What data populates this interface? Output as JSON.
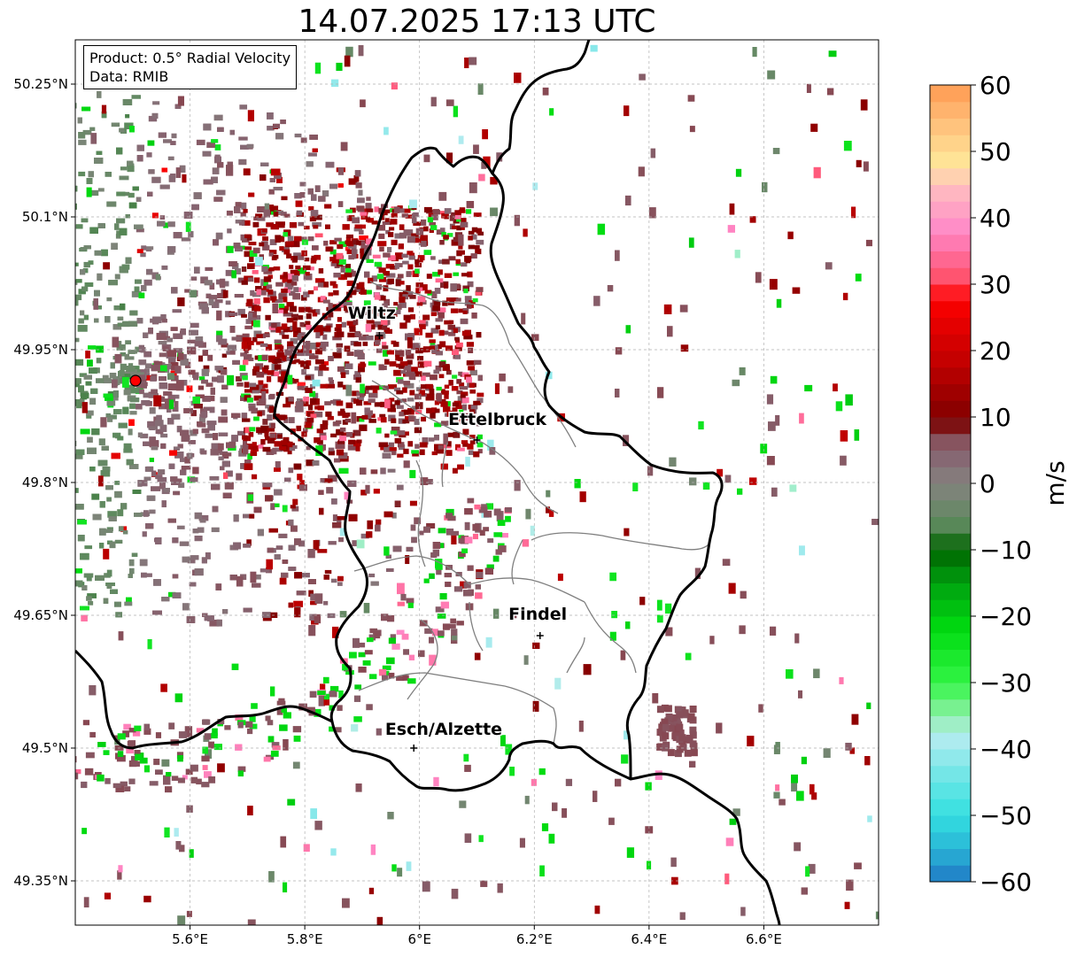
{
  "title": "14.07.2025 17:13 UTC",
  "info": {
    "product": "Product: 0.5° Radial Velocity",
    "source": "Data: RMIB"
  },
  "map": {
    "lon_range": [
      5.4,
      6.8
    ],
    "lat_range": [
      49.3,
      50.3
    ],
    "lon_ticks": [
      {
        "value": 5.6,
        "label": "5.6°E"
      },
      {
        "value": 5.8,
        "label": "5.8°E"
      },
      {
        "value": 6.0,
        "label": "6°E"
      },
      {
        "value": 6.2,
        "label": "6.2°E"
      },
      {
        "value": 6.4,
        "label": "6.4°E"
      },
      {
        "value": 6.6,
        "label": "6.6°E"
      }
    ],
    "lat_ticks": [
      {
        "value": 50.25,
        "label": "50.25°N"
      },
      {
        "value": 50.1,
        "label": "50.1°N"
      },
      {
        "value": 49.95,
        "label": "49.95°N"
      },
      {
        "value": 49.8,
        "label": "49.8°N"
      },
      {
        "value": 49.65,
        "label": "49.65°N"
      },
      {
        "value": 49.5,
        "label": "49.5°N"
      },
      {
        "value": 49.35,
        "label": "49.35°N"
      }
    ],
    "radar_site": {
      "lon": 5.505,
      "lat": 49.915
    },
    "cities": [
      {
        "name": "Wiltz",
        "lon": 5.93,
        "lat": 49.966,
        "label_lon": 5.875,
        "label_lat": 49.985
      },
      {
        "name": "Ettelbruck",
        "lon": 6.1,
        "lat": 49.848,
        "label_lon": 6.05,
        "label_lat": 49.865
      },
      {
        "name": "Findel",
        "lon": 6.21,
        "lat": 49.627,
        "label_lon": 6.155,
        "label_lat": 49.645
      },
      {
        "name": "Esch/Alzette",
        "lon": 5.99,
        "lat": 49.5,
        "label_lon": 5.94,
        "label_lat": 49.515
      }
    ]
  },
  "colorbar": {
    "label": "m/s",
    "min": -60,
    "max": 60,
    "ticks": [
      {
        "value": 60,
        "label": "60"
      },
      {
        "value": 50,
        "label": "50"
      },
      {
        "value": 40,
        "label": "40"
      },
      {
        "value": 30,
        "label": "30"
      },
      {
        "value": 20,
        "label": "20"
      },
      {
        "value": 10,
        "label": "10"
      },
      {
        "value": 0,
        "label": "0"
      },
      {
        "value": -10,
        "label": "−10"
      },
      {
        "value": -20,
        "label": "−20"
      },
      {
        "value": -30,
        "label": "−30"
      },
      {
        "value": -40,
        "label": "−40"
      },
      {
        "value": -50,
        "label": "−50"
      },
      {
        "value": -60,
        "label": "−60"
      }
    ],
    "stops": [
      {
        "value": -60,
        "color": "#1f77c4"
      },
      {
        "value": -55,
        "color": "#29b6d6"
      },
      {
        "value": -50,
        "color": "#33dfe0"
      },
      {
        "value": -45,
        "color": "#66e5e5"
      },
      {
        "value": -38,
        "color": "#b5ecf0"
      },
      {
        "value": -35,
        "color": "#8ff0a8"
      },
      {
        "value": -30,
        "color": "#33f546"
      },
      {
        "value": -22,
        "color": "#00dc10"
      },
      {
        "value": -15,
        "color": "#00a010"
      },
      {
        "value": -10,
        "color": "#006400"
      },
      {
        "value": -6,
        "color": "#5e8a5e"
      },
      {
        "value": 0,
        "color": "#84837f"
      },
      {
        "value": 4,
        "color": "#866672"
      },
      {
        "value": 8,
        "color": "#874650"
      },
      {
        "value": 9,
        "color": "#7a0000"
      },
      {
        "value": 18,
        "color": "#c00000"
      },
      {
        "value": 28,
        "color": "#ff0000"
      },
      {
        "value": 30,
        "color": "#ff4a60"
      },
      {
        "value": 38,
        "color": "#ff88c8"
      },
      {
        "value": 45,
        "color": "#ffc0c0"
      },
      {
        "value": 48,
        "color": "#ffe89a"
      },
      {
        "value": 55,
        "color": "#ffbb77"
      },
      {
        "value": 60,
        "color": "#ff9a50"
      }
    ]
  },
  "colors": {
    "border_national": "#000000",
    "border_canton": "#7f7f7f",
    "gridline": "#b0b0b0",
    "radar_marker": "#ff0000"
  }
}
